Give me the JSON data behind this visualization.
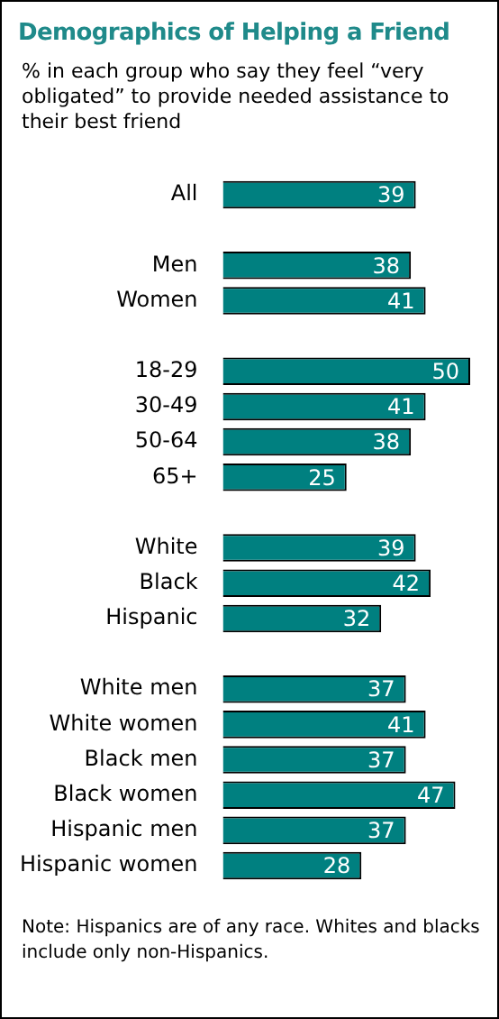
{
  "chart_data": {
    "type": "bar",
    "orientation": "horizontal",
    "title": "Demographics of Helping a Friend",
    "subtitle": "% in each group who say they feel “very obligated” to provide needed assistance to their best friend",
    "categories": [
      "All",
      null,
      "Men",
      "Women",
      null,
      "18-29",
      "30-49",
      "50-64",
      "65+",
      null,
      "White",
      "Black",
      "Hispanic",
      null,
      "White men",
      "White women",
      "Black men",
      "Black women",
      "Hispanic men",
      "Hispanic women"
    ],
    "values": [
      39,
      null,
      38,
      41,
      null,
      50,
      41,
      38,
      25,
      null,
      39,
      42,
      32,
      null,
      37,
      41,
      37,
      47,
      37,
      28
    ],
    "color": "#008080",
    "xlim": [
      0,
      50
    ],
    "data_labels": true,
    "tick_labels": "y",
    "annotations": [
      "Note: Hispanics are of any race. Whites and blacks include only non-Hispanics."
    ]
  }
}
